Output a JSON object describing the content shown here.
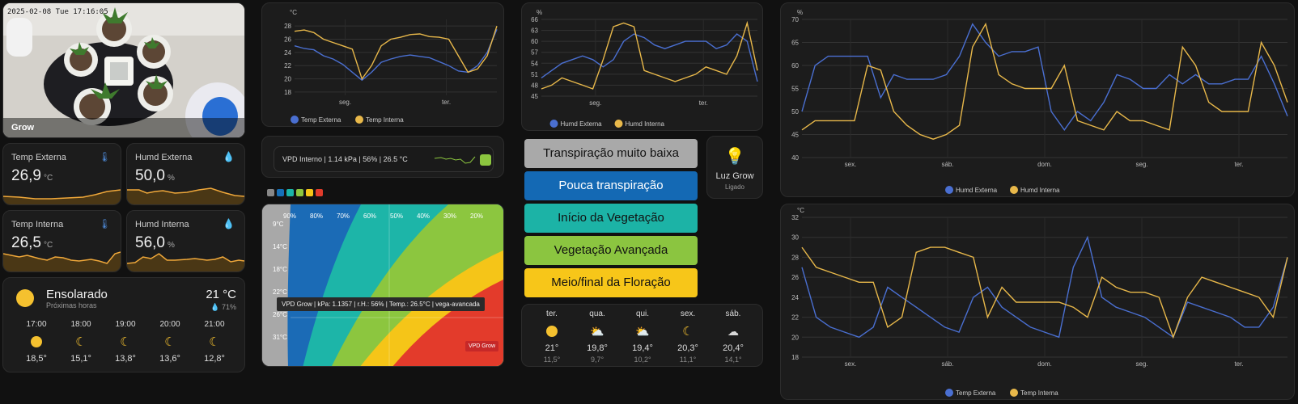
{
  "camera": {
    "timestamp": "2025-02-08 Tue 17:16:05",
    "caption": "Grow"
  },
  "sensors": [
    {
      "label": "Temp Externa",
      "value": "26,9",
      "unit": "°C",
      "icon": "thermometer-icon"
    },
    {
      "label": "Humd Externa",
      "value": "50,0",
      "unit": "%",
      "icon": "water-drop-icon"
    },
    {
      "label": "Temp Interna",
      "value": "26,5",
      "unit": "°C",
      "icon": "thermometer-icon"
    },
    {
      "label": "Humd Interna",
      "value": "56,0",
      "unit": "%",
      "icon": "water-drop-icon"
    }
  ],
  "weather": {
    "condition": "Ensolarado",
    "subtitle": "Próximas horas",
    "temp": "21 °C",
    "humidity": "71%",
    "hourly": [
      {
        "time": "17:00",
        "icon": "sun",
        "temp": "18,5°"
      },
      {
        "time": "18:00",
        "icon": "moon",
        "temp": "15,1°"
      },
      {
        "time": "19:00",
        "icon": "moon",
        "temp": "13,8°"
      },
      {
        "time": "20:00",
        "icon": "moon",
        "temp": "13,6°"
      },
      {
        "time": "21:00",
        "icon": "moon",
        "temp": "12,8°"
      }
    ]
  },
  "vpd": {
    "label": "VPD Interno",
    "kpa": "1.14 kPa",
    "rh": "56%",
    "temp": "26.5 °C",
    "colors": [
      "#888888",
      "#1670b8",
      "#1ab5a8",
      "#8cc63f",
      "#f5c518",
      "#e13b2b"
    ],
    "rh_labels": [
      "90%",
      "80%",
      "70%",
      "60%",
      "50%",
      "40%",
      "30%",
      "20%"
    ],
    "temp_labels": [
      "9°C",
      "14°C",
      "18°C",
      "22°C",
      "26°C",
      "31°C"
    ],
    "tooltip": [
      "VPD Grow",
      "kPa: 1.1357",
      "r.H.: 56%",
      "Temp.: 26.5°C",
      "vega-avancada"
    ],
    "badge": "VPD Grow"
  },
  "stages": [
    {
      "label": "Transpiração muito baixa",
      "bg": "#a9a9a9",
      "fg": "#111111"
    },
    {
      "label": "Pouca transpiração",
      "bg": "#1469b4",
      "fg": "#ffffff"
    },
    {
      "label": "Início da Vegetação",
      "bg": "#1cb3a6",
      "fg": "#111111"
    },
    {
      "label": "Vegetação Avançada",
      "bg": "#8bc540",
      "fg": "#111111"
    },
    {
      "label": "Meio/final da Floração",
      "bg": "#f7c619",
      "fg": "#111111"
    }
  ],
  "light": {
    "name": "Luz Grow",
    "state": "Ligado"
  },
  "forecast": [
    {
      "day": "ter.",
      "icon": "sun",
      "high": "21°",
      "low": "11,5°"
    },
    {
      "day": "qua.",
      "icon": "partly-cloudy",
      "high": "19,8°",
      "low": "9,7°"
    },
    {
      "day": "qui.",
      "icon": "partly-cloudy",
      "high": "19,4°",
      "low": "10,2°"
    },
    {
      "day": "sex.",
      "icon": "moon",
      "high": "20,3°",
      "low": "11,1°"
    },
    {
      "day": "sáb.",
      "icon": "cloud",
      "high": "20,4°",
      "low": "14,1°"
    }
  ],
  "chart_data": [
    {
      "type": "line",
      "ylabel": "°C",
      "yticks": [
        18,
        20,
        22,
        24,
        26,
        28
      ],
      "ylim": [
        17.5,
        29
      ],
      "xticks": [
        "seg.",
        "ter."
      ],
      "series": [
        {
          "name": "Temp Externa",
          "color": "#4a6fd1",
          "values": [
            25,
            24.6,
            24.4,
            23.5,
            23,
            22.2,
            21,
            19.8,
            21,
            22.5,
            23,
            23.4,
            23.6,
            23.4,
            23.2,
            22.6,
            22,
            21.2,
            21,
            22,
            24,
            27.5
          ]
        },
        {
          "name": "Temp Interna",
          "color": "#e8b84a",
          "values": [
            27.2,
            27.4,
            27,
            26,
            25.5,
            25,
            24.5,
            20,
            22,
            25,
            26,
            26.3,
            26.7,
            26.8,
            26.4,
            26.3,
            26,
            23.5,
            21,
            21.5,
            23.5,
            28
          ]
        }
      ]
    },
    {
      "type": "line",
      "ylabel": "%",
      "yticks": [
        45,
        48,
        51,
        54,
        57,
        60,
        63,
        66
      ],
      "ylim": [
        45,
        66
      ],
      "xticks": [
        "seg.",
        "ter."
      ],
      "series": [
        {
          "name": "Humd Externa",
          "color": "#4a6fd1",
          "values": [
            50,
            52,
            54,
            55,
            56,
            55,
            53,
            55,
            60,
            62,
            61,
            59,
            58,
            59,
            60,
            60,
            60,
            58,
            59,
            62,
            60,
            49
          ]
        },
        {
          "name": "Humd Interna",
          "color": "#e8b84a",
          "values": [
            47,
            48,
            50,
            49,
            48,
            47,
            55,
            64,
            65,
            64,
            52,
            51,
            50,
            49,
            50,
            51,
            53,
            52,
            51,
            56,
            65,
            52
          ]
        }
      ]
    },
    {
      "type": "line",
      "ylabel": "%",
      "yticks": [
        40,
        45,
        50,
        55,
        60,
        65,
        70
      ],
      "ylim": [
        40,
        70
      ],
      "xticks": [
        "sex.",
        "sáb.",
        "dom.",
        "seg.",
        "ter."
      ],
      "series": [
        {
          "name": "Humd Externa",
          "color": "#4a6fd1",
          "values": [
            50,
            60,
            62,
            62,
            62,
            62,
            53,
            58,
            57,
            57,
            57,
            58,
            62,
            69,
            65,
            62,
            63,
            63,
            64,
            50,
            46,
            50,
            48,
            52,
            58,
            57,
            55,
            55,
            58,
            56,
            58,
            56,
            56,
            57,
            57,
            62,
            56,
            49
          ]
        },
        {
          "name": "Humd Interna",
          "color": "#e8b84a",
          "values": [
            46,
            48,
            48,
            48,
            48,
            60,
            59,
            50,
            47,
            45,
            44,
            45,
            47,
            64,
            69,
            58,
            56,
            55,
            55,
            55,
            60,
            48,
            47,
            46,
            50,
            48,
            48,
            47,
            46,
            64,
            60,
            52,
            50,
            50,
            50,
            65,
            60,
            52
          ]
        }
      ]
    },
    {
      "type": "line",
      "ylabel": "°C",
      "yticks": [
        18,
        20,
        22,
        24,
        26,
        28,
        30,
        32
      ],
      "ylim": [
        18,
        32
      ],
      "xticks": [
        "sex.",
        "sáb.",
        "dom.",
        "seg.",
        "ter."
      ],
      "series": [
        {
          "name": "Temp Externa",
          "color": "#4a6fd1",
          "values": [
            27,
            22,
            21,
            20.5,
            20,
            21,
            25,
            24,
            23,
            22,
            21,
            20.5,
            24,
            25,
            23,
            22,
            21,
            20.5,
            20,
            27,
            30,
            24,
            23,
            22.5,
            22,
            21,
            20,
            23.5,
            23,
            22.5,
            22,
            21,
            21,
            23,
            28
          ]
        },
        {
          "name": "Temp Interna",
          "color": "#e8b84a",
          "values": [
            29,
            27,
            26.5,
            26,
            25.5,
            25.5,
            21,
            22,
            28.5,
            29,
            29,
            28.5,
            28,
            22,
            25,
            23.5,
            23.5,
            23.5,
            23.5,
            23,
            22,
            26,
            25,
            24.5,
            24.5,
            24,
            20,
            24,
            26,
            25.5,
            25,
            24.5,
            24,
            22,
            28
          ]
        }
      ]
    }
  ]
}
